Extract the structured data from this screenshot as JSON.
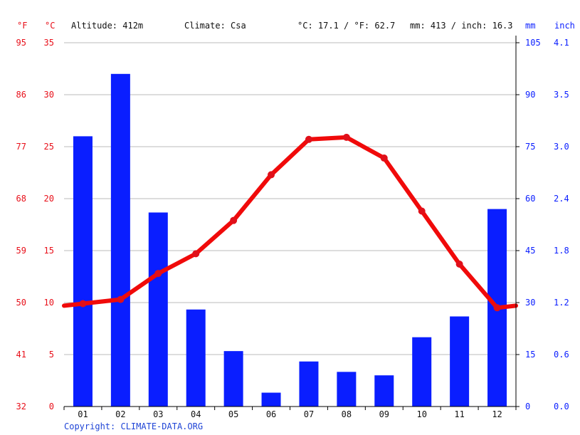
{
  "header": {
    "unit_f": "°F",
    "unit_c": "°C",
    "altitude": "Altitude: 412m",
    "climate": "Climate: Csa",
    "temp_avg": "°C: 17.1 / °F: 62.7",
    "precip_total": "mm: 413 / inch: 16.3",
    "unit_mm": "mm",
    "unit_inch": "inch"
  },
  "footer": {
    "copyright": "Copyright: CLIMATE-DATA.ORG"
  },
  "colors": {
    "bar": "#0a1eff",
    "line": "#f00a0a",
    "axis_red": "#e8101a",
    "axis_blue": "#0a1eff",
    "grid": "#bbbbbb"
  },
  "chart_data": {
    "type": "bar",
    "categories": [
      "01",
      "02",
      "03",
      "04",
      "05",
      "06",
      "07",
      "08",
      "09",
      "10",
      "11",
      "12"
    ],
    "series": [
      {
        "type": "bar",
        "axis": "mm",
        "values": [
          78,
          96,
          56,
          28,
          16,
          4,
          13,
          10,
          9,
          20,
          26,
          57
        ]
      },
      {
        "type": "line",
        "axis": "celsius",
        "values": [
          9.9,
          10.3,
          12.8,
          14.7,
          17.9,
          22.3,
          25.7,
          25.9,
          23.9,
          18.8,
          13.7,
          9.5
        ]
      }
    ],
    "line_edges": {
      "start": 9.7,
      "end": 9.7
    },
    "axes": {
      "celsius": {
        "ticks": [
          "35",
          "30",
          "25",
          "20",
          "15",
          "10",
          "5",
          "0"
        ],
        "range": [
          0,
          35
        ]
      },
      "fahrenheit": {
        "ticks": [
          "95",
          "86",
          "77",
          "68",
          "59",
          "50",
          "41",
          "32"
        ]
      },
      "mm": {
        "ticks": [
          "105",
          "90",
          "75",
          "60",
          "45",
          "30",
          "15",
          "0"
        ],
        "range": [
          0,
          105
        ]
      },
      "inch": {
        "ticks": [
          "4.1",
          "3.5",
          "3.0",
          "2.4",
          "1.8",
          "1.2",
          "0.6",
          "0.0"
        ]
      }
    },
    "grid": true
  }
}
